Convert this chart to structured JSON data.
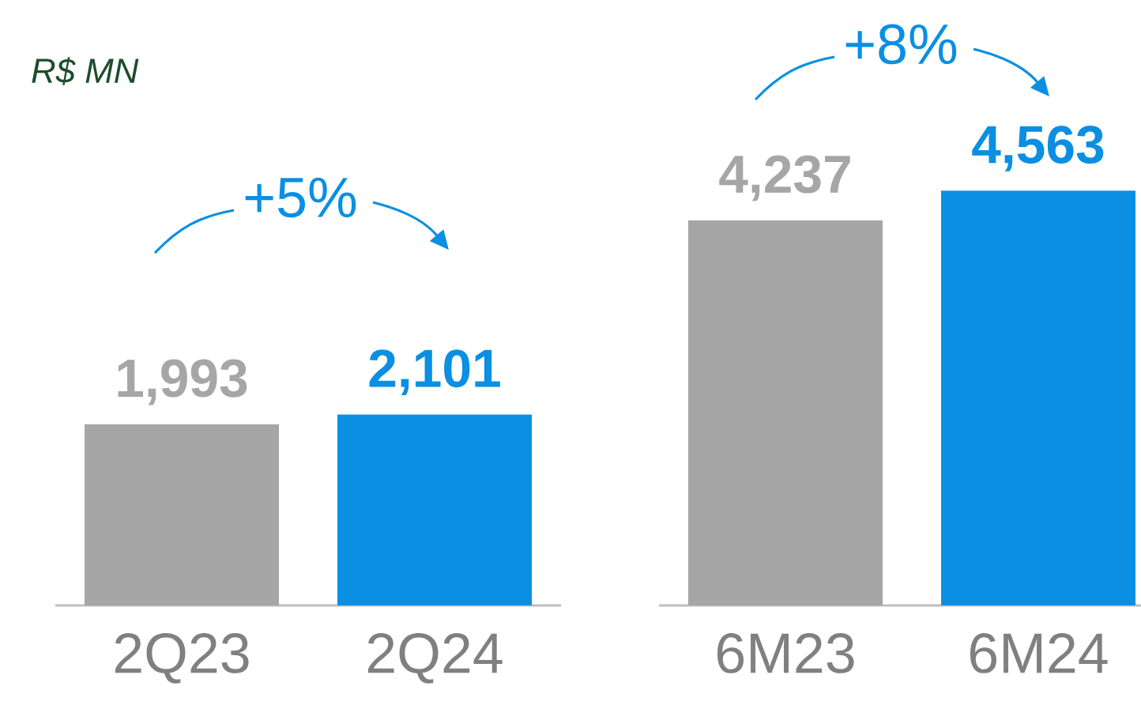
{
  "chart_data": [
    {
      "type": "other",
      "annotations": [
        "R$ MN"
      ]
    },
    {
      "type": "bar",
      "categories": [
        "2Q23",
        "2Q24"
      ],
      "values": [
        1993,
        2101
      ],
      "value_labels": [
        "1,993",
        "2,101"
      ],
      "colors": [
        "#a6a6a6",
        "#0a8fe3"
      ],
      "annotations": [
        "+5%"
      ]
    },
    {
      "type": "bar",
      "categories": [
        "6M23",
        "6M24"
      ],
      "values": [
        4237,
        4563
      ],
      "value_labels": [
        "4,237",
        "4,563"
      ],
      "colors": [
        "#a6a6a6",
        "#0a8fe3"
      ],
      "annotations": [
        "+8%"
      ]
    }
  ]
}
